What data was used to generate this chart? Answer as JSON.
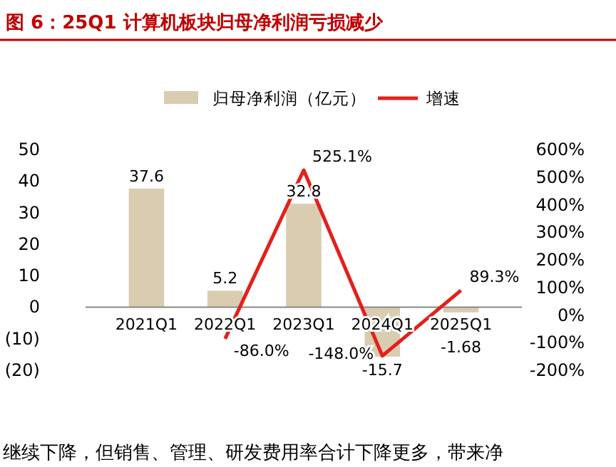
{
  "chart_data": {
    "type": "bar",
    "title": "图 6：25Q1 计算机板块归母净利润亏损减少",
    "categories": [
      "2021Q1",
      "2022Q1",
      "2023Q1",
      "2024Q1",
      "2025Q1"
    ],
    "series": [
      {
        "name": "归母净利润（亿元）",
        "color": "#d9ccb1",
        "values": [
          37.6,
          5.2,
          32.8,
          -15.7,
          -1.68
        ]
      },
      {
        "name": "增速",
        "type": "line",
        "axis": "y2",
        "color": "#e3201b",
        "values": [
          null,
          -86.0,
          525.1,
          -148.0,
          89.3
        ],
        "value_labels": [
          null,
          "-86.0%",
          "525.1%",
          "-148.0%",
          "89.3%"
        ]
      }
    ],
    "data_labels": true,
    "ylim": [
      -20,
      50
    ],
    "yticks": [
      {
        "value": -20,
        "label": "(20)"
      },
      {
        "value": -10,
        "label": "(10)"
      },
      0,
      10,
      20,
      30,
      40,
      50
    ],
    "y2lim": [
      -200,
      600
    ],
    "y2ticks": [
      {
        "value": -200,
        "label": "-200%"
      },
      {
        "value": -100,
        "label": "-100%"
      },
      {
        "value": 0,
        "label": "0%"
      },
      {
        "value": 100,
        "label": "100%"
      },
      {
        "value": 200,
        "label": "200%"
      },
      {
        "value": 300,
        "label": "300%"
      },
      {
        "value": 400,
        "label": "400%"
      },
      {
        "value": 500,
        "label": "500%"
      },
      {
        "value": 600,
        "label": "600%"
      }
    ],
    "legend": "top",
    "grid": false,
    "annotations": [
      "继续下降，但销售、管理、研发费用率合计下降更多，带来净"
    ]
  }
}
